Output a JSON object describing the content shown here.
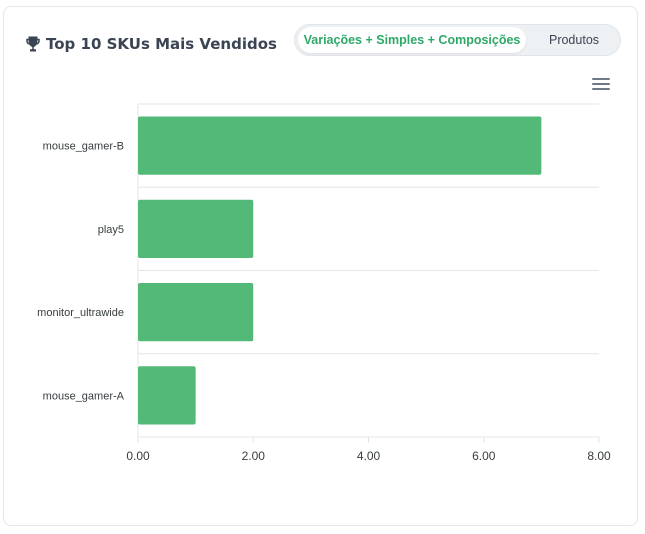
{
  "header": {
    "title": "Top 10 SKUs Mais Vendidos",
    "trophy_icon": "trophy-icon"
  },
  "toggle": {
    "active_label": "Variações + Simples + Composições",
    "inactive_label": "Produtos"
  },
  "menu_icon": "hamburger-menu-icon",
  "colors": {
    "bar": "#53b978",
    "accent": "#2ea968",
    "grid": "#e6e6e6"
  },
  "chart_data": {
    "type": "bar",
    "orientation": "horizontal",
    "title": "Top 10 SKUs Mais Vendidos",
    "categories": [
      "mouse_gamer-B",
      "play5",
      "monitor_ultrawide",
      "mouse_gamer-A"
    ],
    "values": [
      7,
      2,
      2,
      1
    ],
    "xlim": [
      0,
      8
    ],
    "x_ticks": [
      "0.00",
      "2.00",
      "4.00",
      "6.00",
      "8.00"
    ],
    "xlabel": "",
    "ylabel": "",
    "grid": true,
    "legend": "none"
  }
}
